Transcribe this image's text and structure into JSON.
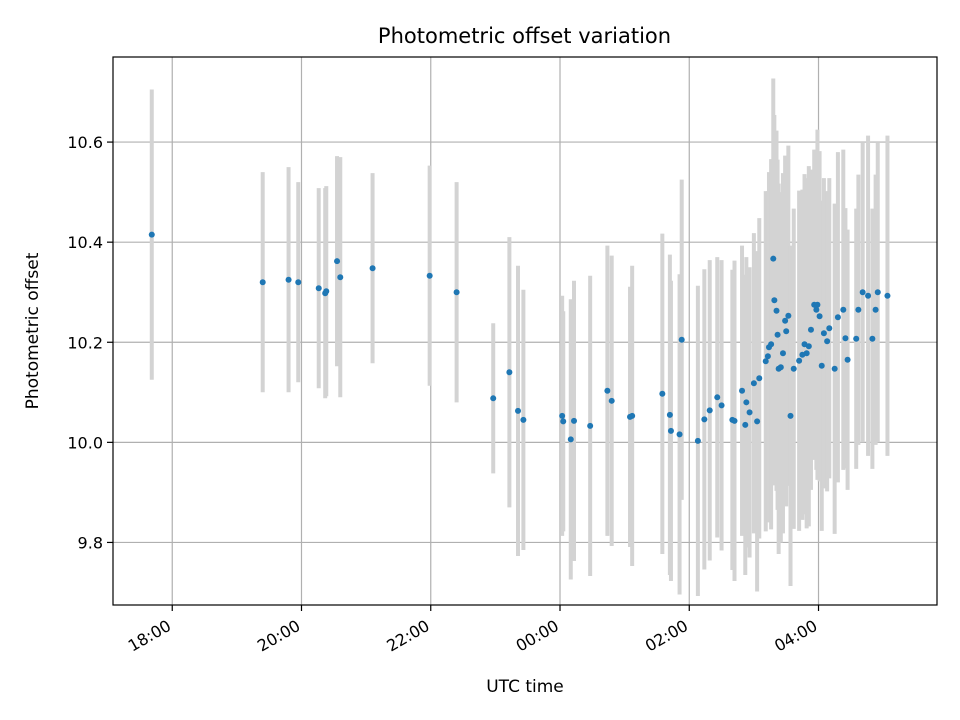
{
  "chart_data": {
    "type": "scatter",
    "title": "Photometric offset variation",
    "xlabel": "UTC time",
    "ylabel": "Photometric offset",
    "x_unit": "hours (UTC clock time)",
    "xlim": [
      "17:05",
      "05:50"
    ],
    "ylim": [
      9.675,
      10.77
    ],
    "x_ticks": [
      "18:00",
      "20:00",
      "22:00",
      "00:00",
      "02:00",
      "04:00"
    ],
    "y_ticks": [
      "9.8",
      "10.0",
      "10.2",
      "10.4",
      "10.6"
    ],
    "grid": true,
    "point_color": "#1f77b4",
    "errorbar_color": "#d3d3d3",
    "series": [
      {
        "x": [
          "17:41",
          "19:24",
          "19:48",
          "19:57",
          "20:16",
          "20:22",
          "20:23",
          "20:33",
          "20:36",
          "21:06",
          "21:59",
          "22:24",
          "22:58",
          "23:13",
          "23:21",
          "23:26",
          "00:02",
          "00:03",
          "00:10",
          "00:13",
          "00:28",
          "00:44",
          "00:48",
          "01:05",
          "01:07",
          "01:35",
          "01:42",
          "01:43",
          "01:51",
          "01:53",
          "02:08",
          "02:14",
          "02:19",
          "02:26",
          "02:30",
          "02:40",
          "02:42",
          "02:49",
          "02:52",
          "02:53",
          "02:56",
          "03:00",
          "03:03",
          "03:05",
          "03:11",
          "03:13",
          "03:14",
          "03:16",
          "03:18",
          "03:19",
          "03:21",
          "03:22",
          "03:23",
          "03:25",
          "03:27",
          "03:29",
          "03:30",
          "03:32",
          "03:34",
          "03:37",
          "03:42",
          "03:45",
          "03:47",
          "03:49",
          "03:51",
          "03:53",
          "03:56",
          "03:58",
          "03:59",
          "04:01",
          "04:03",
          "04:05",
          "04:08",
          "04:10",
          "04:15",
          "04:18",
          "04:23",
          "04:25",
          "04:27",
          "04:35",
          "04:37",
          "04:41",
          "04:46",
          "04:50",
          "04:53",
          "04:55",
          "05:04"
        ],
        "y": [
          10.415,
          10.32,
          10.325,
          10.32,
          10.308,
          10.298,
          10.302,
          10.362,
          10.33,
          10.348,
          10.333,
          10.3,
          10.088,
          10.14,
          10.063,
          10.045,
          10.053,
          10.042,
          10.006,
          10.043,
          10.033,
          10.103,
          10.083,
          10.051,
          10.053,
          10.097,
          10.055,
          10.023,
          10.016,
          10.205,
          10.003,
          10.046,
          10.064,
          10.09,
          10.074,
          10.045,
          10.043,
          10.103,
          10.035,
          10.08,
          10.06,
          10.118,
          10.042,
          10.128,
          10.162,
          10.172,
          10.19,
          10.196,
          10.367,
          10.284,
          10.263,
          10.215,
          10.147,
          10.15,
          10.178,
          10.243,
          10.222,
          10.253,
          10.053,
          10.147,
          10.163,
          10.175,
          10.196,
          10.178,
          10.192,
          10.225,
          10.275,
          10.265,
          10.275,
          10.252,
          10.153,
          10.218,
          10.202,
          10.228,
          10.147,
          10.25,
          10.265,
          10.208,
          10.165,
          10.207,
          10.265,
          10.3,
          10.293,
          10.207,
          10.265,
          10.3,
          10.293
        ],
        "yerr": [
          0.29,
          0.22,
          0.225,
          0.2,
          0.2,
          0.21,
          0.21,
          0.21,
          0.24,
          0.19,
          0.22,
          0.22,
          0.15,
          0.27,
          0.29,
          0.26,
          0.24,
          0.22,
          0.28,
          0.28,
          0.3,
          0.29,
          0.29,
          0.26,
          0.3,
          0.32,
          0.32,
          0.3,
          0.32,
          0.32,
          0.31,
          0.3,
          0.3,
          0.28,
          0.29,
          0.3,
          0.32,
          0.29,
          0.3,
          0.29,
          0.29,
          0.3,
          0.34,
          0.32,
          0.34,
          0.33,
          0.35,
          0.37,
          0.36,
          0.37,
          0.36,
          0.35,
          0.37,
          0.35,
          0.36,
          0.33,
          0.35,
          0.34,
          0.34,
          0.32,
          0.34,
          0.33,
          0.34,
          0.35,
          0.36,
          0.32,
          0.31,
          0.32,
          0.35,
          0.33,
          0.33,
          0.31,
          0.3,
          0.3,
          0.33,
          0.33,
          0.32,
          0.26,
          0.26,
          0.26,
          0.27,
          0.3,
          0.32,
          0.26,
          0.27,
          0.3,
          0.32
        ]
      }
    ]
  }
}
